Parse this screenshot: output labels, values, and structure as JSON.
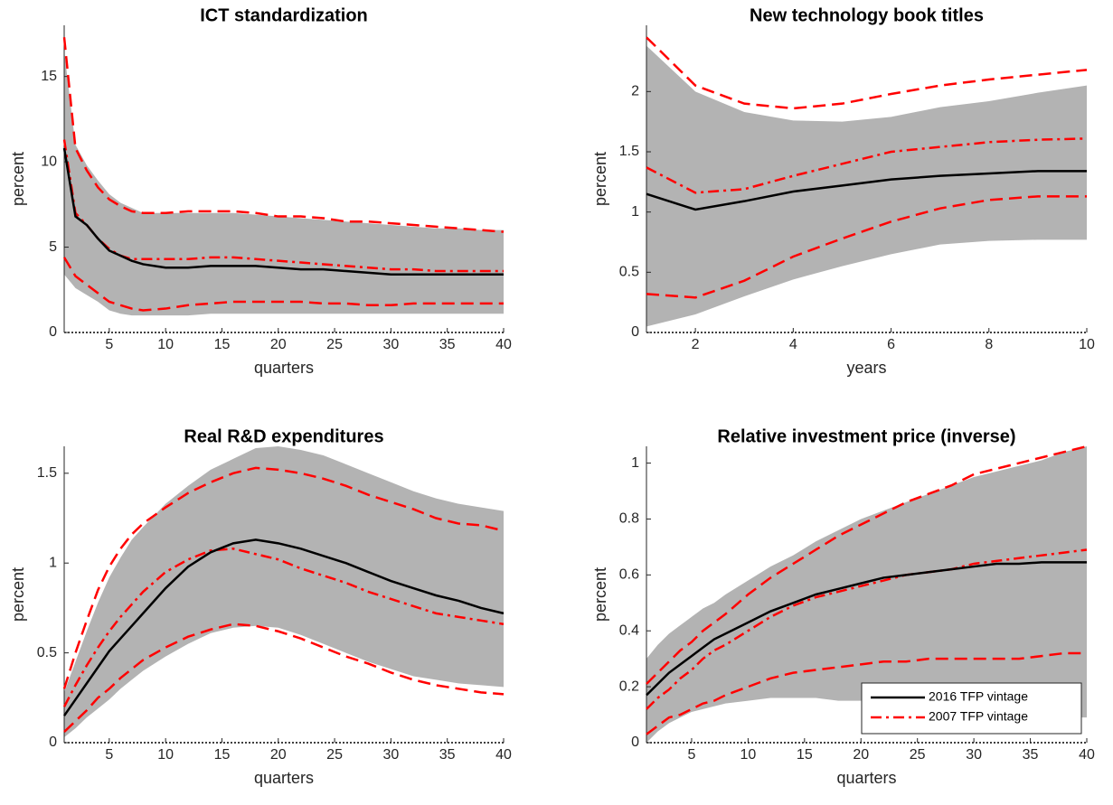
{
  "chart_data": [
    {
      "type": "line",
      "title": "ICT standardization",
      "xlabel": "quarters",
      "ylabel": "percent",
      "x": [
        1,
        2,
        3,
        4,
        5,
        6,
        7,
        8,
        10,
        12,
        14,
        16,
        18,
        20,
        22,
        24,
        26,
        28,
        30,
        32,
        34,
        36,
        38,
        40
      ],
      "xlim": [
        1,
        40
      ],
      "xticks": [
        5,
        10,
        15,
        20,
        25,
        30,
        35,
        40
      ],
      "ylim": [
        0,
        18
      ],
      "yticks": [
        0,
        5,
        10,
        15
      ],
      "band": {
        "color": "#b3b3b3",
        "upper": [
          16.5,
          11,
          9.8,
          8.9,
          8.1,
          7.6,
          7.3,
          7.0,
          7.0,
          7.0,
          7.0,
          7.0,
          6.9,
          6.8,
          6.7,
          6.6,
          6.5,
          6.4,
          6.3,
          6.2,
          6.1,
          6.1,
          6.0,
          6.0
        ],
        "lower": [
          3.4,
          2.6,
          2.2,
          1.8,
          1.3,
          1.1,
          1.0,
          1.0,
          1.0,
          1.0,
          1.1,
          1.1,
          1.1,
          1.1,
          1.1,
          1.1,
          1.1,
          1.1,
          1.1,
          1.1,
          1.1,
          1.1,
          1.1,
          1.1
        ]
      },
      "series": [
        {
          "color": "#000000",
          "style": "solid",
          "values": [
            10.8,
            6.8,
            6.3,
            5.5,
            4.8,
            4.5,
            4.2,
            4.0,
            3.8,
            3.8,
            3.9,
            3.9,
            3.9,
            3.8,
            3.7,
            3.7,
            3.6,
            3.5,
            3.4,
            3.4,
            3.4,
            3.4,
            3.4,
            3.4
          ]
        },
        {
          "color": "#ff0000",
          "style": "dashdot",
          "values": [
            11.3,
            7.0,
            6.3,
            5.5,
            4.9,
            4.5,
            4.3,
            4.3,
            4.3,
            4.3,
            4.4,
            4.4,
            4.3,
            4.2,
            4.1,
            4.0,
            3.9,
            3.8,
            3.7,
            3.7,
            3.6,
            3.6,
            3.6,
            3.6
          ]
        },
        {
          "color": "#ff0000",
          "style": "dashed",
          "values": [
            17.3,
            10.8,
            9.5,
            8.5,
            7.8,
            7.4,
            7.1,
            7.0,
            7.0,
            7.1,
            7.1,
            7.1,
            7.0,
            6.8,
            6.8,
            6.7,
            6.5,
            6.5,
            6.4,
            6.3,
            6.2,
            6.1,
            6.0,
            5.9
          ]
        },
        {
          "color": "#ff0000",
          "style": "dashed",
          "values": [
            4.4,
            3.3,
            2.8,
            2.3,
            1.8,
            1.6,
            1.4,
            1.3,
            1.4,
            1.6,
            1.7,
            1.8,
            1.8,
            1.8,
            1.8,
            1.7,
            1.7,
            1.6,
            1.6,
            1.7,
            1.7,
            1.7,
            1.7,
            1.7
          ]
        }
      ]
    },
    {
      "type": "line",
      "title": "New technology book titles",
      "xlabel": "years",
      "ylabel": "percent",
      "x": [
        1,
        2,
        3,
        4,
        5,
        6,
        7,
        8,
        9,
        10
      ],
      "xlim": [
        1,
        10
      ],
      "xticks": [
        2,
        4,
        6,
        8,
        10
      ],
      "ylim": [
        0,
        2.55
      ],
      "yticks": [
        0,
        0.5,
        1,
        1.5,
        2
      ],
      "band": {
        "color": "#b3b3b3",
        "upper": [
          2.38,
          2.0,
          1.83,
          1.76,
          1.75,
          1.79,
          1.87,
          1.92,
          1.99,
          2.05
        ],
        "lower": [
          0.05,
          0.15,
          0.3,
          0.44,
          0.55,
          0.65,
          0.73,
          0.76,
          0.77,
          0.77
        ]
      },
      "series": [
        {
          "color": "#000000",
          "style": "solid",
          "values": [
            1.15,
            1.02,
            1.09,
            1.17,
            1.22,
            1.27,
            1.3,
            1.32,
            1.34,
            1.34
          ]
        },
        {
          "color": "#ff0000",
          "style": "dashdot",
          "values": [
            1.37,
            1.16,
            1.19,
            1.3,
            1.4,
            1.5,
            1.54,
            1.58,
            1.6,
            1.61
          ]
        },
        {
          "color": "#ff0000",
          "style": "dashed",
          "values": [
            2.45,
            2.05,
            1.9,
            1.86,
            1.9,
            1.98,
            2.05,
            2.1,
            2.14,
            2.18
          ]
        },
        {
          "color": "#ff0000",
          "style": "dashed",
          "values": [
            0.32,
            0.29,
            0.43,
            0.63,
            0.78,
            0.92,
            1.03,
            1.1,
            1.13,
            1.13
          ]
        }
      ]
    },
    {
      "type": "line",
      "title": "Real R&D expenditures",
      "xlabel": "quarters",
      "ylabel": "percent",
      "x": [
        1,
        2,
        3,
        4,
        5,
        6,
        7,
        8,
        10,
        12,
        14,
        16,
        18,
        20,
        22,
        24,
        26,
        28,
        30,
        32,
        34,
        36,
        38,
        40
      ],
      "xlim": [
        1,
        40
      ],
      "xticks": [
        5,
        10,
        15,
        20,
        25,
        30,
        35,
        40
      ],
      "ylim": [
        0,
        1.65
      ],
      "yticks": [
        0,
        0.5,
        1,
        1.5
      ],
      "band": {
        "color": "#b3b3b3",
        "upper": [
          0.28,
          0.45,
          0.62,
          0.78,
          0.92,
          1.03,
          1.13,
          1.2,
          1.33,
          1.43,
          1.52,
          1.58,
          1.64,
          1.65,
          1.63,
          1.6,
          1.55,
          1.5,
          1.45,
          1.4,
          1.36,
          1.33,
          1.31,
          1.29
        ],
        "lower": [
          0.03,
          0.08,
          0.14,
          0.19,
          0.24,
          0.3,
          0.35,
          0.4,
          0.48,
          0.55,
          0.61,
          0.64,
          0.65,
          0.64,
          0.6,
          0.55,
          0.5,
          0.45,
          0.41,
          0.37,
          0.35,
          0.33,
          0.32,
          0.31
        ]
      },
      "series": [
        {
          "color": "#000000",
          "style": "solid",
          "values": [
            0.15,
            0.24,
            0.33,
            0.42,
            0.51,
            0.58,
            0.65,
            0.72,
            0.86,
            0.98,
            1.06,
            1.11,
            1.13,
            1.11,
            1.08,
            1.04,
            1.0,
            0.95,
            0.9,
            0.86,
            0.82,
            0.79,
            0.75,
            0.72
          ]
        },
        {
          "color": "#ff0000",
          "style": "dashdot",
          "values": [
            0.2,
            0.32,
            0.43,
            0.53,
            0.62,
            0.7,
            0.77,
            0.84,
            0.95,
            1.02,
            1.07,
            1.08,
            1.05,
            1.02,
            0.97,
            0.93,
            0.89,
            0.84,
            0.8,
            0.76,
            0.72,
            0.7,
            0.68,
            0.66
          ]
        },
        {
          "color": "#ff0000",
          "style": "dashed",
          "values": [
            0.3,
            0.5,
            0.68,
            0.85,
            0.98,
            1.08,
            1.16,
            1.22,
            1.31,
            1.39,
            1.45,
            1.5,
            1.53,
            1.52,
            1.5,
            1.47,
            1.43,
            1.38,
            1.34,
            1.3,
            1.25,
            1.22,
            1.21,
            1.18
          ]
        },
        {
          "color": "#ff0000",
          "style": "dashed",
          "values": [
            0.06,
            0.12,
            0.18,
            0.25,
            0.3,
            0.36,
            0.41,
            0.46,
            0.53,
            0.59,
            0.63,
            0.66,
            0.65,
            0.62,
            0.58,
            0.53,
            0.48,
            0.44,
            0.39,
            0.35,
            0.32,
            0.3,
            0.28,
            0.27
          ]
        }
      ]
    },
    {
      "type": "line",
      "title": "Relative investment price (inverse)",
      "xlabel": "quarters",
      "ylabel": "percent",
      "x": [
        1,
        2,
        3,
        4,
        5,
        6,
        7,
        8,
        10,
        12,
        14,
        16,
        18,
        20,
        22,
        24,
        26,
        28,
        30,
        32,
        34,
        36,
        38,
        40
      ],
      "xlim": [
        1,
        40
      ],
      "xticks": [
        5,
        10,
        15,
        20,
        25,
        30,
        35,
        40
      ],
      "ylim": [
        0,
        1.06
      ],
      "yticks": [
        0,
        0.2,
        0.4,
        0.6,
        0.8,
        1
      ],
      "legend": "lower right",
      "band": {
        "color": "#b3b3b3",
        "upper": [
          0.3,
          0.35,
          0.39,
          0.42,
          0.45,
          0.48,
          0.5,
          0.53,
          0.58,
          0.63,
          0.67,
          0.72,
          0.76,
          0.8,
          0.83,
          0.86,
          0.89,
          0.92,
          0.95,
          0.97,
          0.99,
          1.01,
          1.04,
          1.06
        ],
        "lower": [
          0.0,
          0.04,
          0.07,
          0.09,
          0.11,
          0.12,
          0.13,
          0.14,
          0.15,
          0.16,
          0.16,
          0.16,
          0.15,
          0.15,
          0.14,
          0.13,
          0.12,
          0.11,
          0.11,
          0.1,
          0.1,
          0.1,
          0.09,
          0.09
        ]
      },
      "series": [
        {
          "name": "2016 TFP vintage",
          "color": "#000000",
          "style": "solid",
          "values": [
            0.17,
            0.21,
            0.25,
            0.28,
            0.31,
            0.34,
            0.37,
            0.39,
            0.43,
            0.47,
            0.5,
            0.53,
            0.55,
            0.57,
            0.59,
            0.6,
            0.61,
            0.62,
            0.63,
            0.64,
            0.64,
            0.645,
            0.645,
            0.645
          ]
        },
        {
          "name": "2007 TFP vintage",
          "color": "#ff0000",
          "style": "dashdot",
          "values": [
            0.12,
            0.16,
            0.19,
            0.23,
            0.26,
            0.3,
            0.33,
            0.35,
            0.4,
            0.45,
            0.49,
            0.52,
            0.54,
            0.56,
            0.58,
            0.6,
            0.61,
            0.62,
            0.64,
            0.65,
            0.66,
            0.67,
            0.68,
            0.69
          ]
        },
        {
          "color": "#ff0000",
          "style": "dashed",
          "values": [
            0.21,
            0.25,
            0.29,
            0.33,
            0.36,
            0.4,
            0.43,
            0.46,
            0.53,
            0.59,
            0.64,
            0.69,
            0.74,
            0.78,
            0.82,
            0.86,
            0.89,
            0.92,
            0.96,
            0.98,
            1.0,
            1.02,
            1.04,
            1.06
          ]
        },
        {
          "color": "#ff0000",
          "style": "dashed",
          "values": [
            0.03,
            0.06,
            0.09,
            0.1,
            0.12,
            0.14,
            0.15,
            0.17,
            0.2,
            0.23,
            0.25,
            0.26,
            0.27,
            0.28,
            0.29,
            0.29,
            0.3,
            0.3,
            0.3,
            0.3,
            0.3,
            0.31,
            0.32,
            0.32
          ]
        }
      ]
    }
  ]
}
